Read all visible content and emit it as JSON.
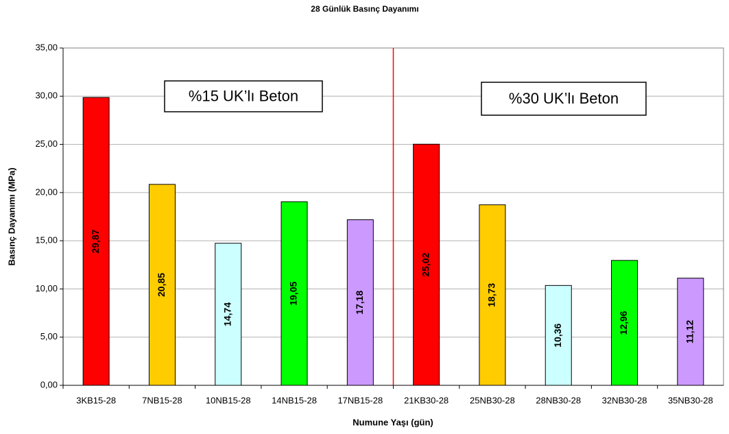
{
  "chart_data": {
    "type": "bar",
    "title": "28 Günlük Basınç Dayanımı",
    "x_label": "Numune Yaşı (gün)",
    "y_label": "Basınç Dayanımı (MPa)",
    "categories": [
      "3KB15-28",
      "7NB15-28",
      "10NB15-28",
      "14NB15-28",
      "17NB15-28",
      "21KB30-28",
      "25NB30-28",
      "28NB30-28",
      "32NB30-28",
      "35NB30-28"
    ],
    "values": [
      29.87,
      20.85,
      14.74,
      19.05,
      17.18,
      25.02,
      18.73,
      10.36,
      12.96,
      11.12
    ],
    "value_labels": [
      "29,87",
      "20,85",
      "14,74",
      "19,05",
      "17,18",
      "25,02",
      "18,73",
      "10,36",
      "12,96",
      "11,12"
    ],
    "colors": [
      "#ff0000",
      "#ffcc00",
      "#ccffff",
      "#00ff00",
      "#cc99ff",
      "#ff0000",
      "#ffcc00",
      "#ccffff",
      "#00ff00",
      "#cc99ff"
    ],
    "ylim": [
      0,
      35
    ],
    "yticks": [
      {
        "value": 0,
        "label": "0,00"
      },
      {
        "value": 5,
        "label": "5,00"
      },
      {
        "value": 10,
        "label": "10,00"
      },
      {
        "value": 15,
        "label": "15,00"
      },
      {
        "value": 20,
        "label": "20,00"
      },
      {
        "value": 25,
        "label": "25,00"
      },
      {
        "value": 30,
        "label": "30,00"
      },
      {
        "value": 35,
        "label": "35,00"
      }
    ],
    "grid": true,
    "divider": {
      "after_category": 4,
      "color": "#ff0000"
    },
    "annotations": [
      "%15 UK’lı Beton",
      "%30 UK’lı Beton"
    ]
  }
}
